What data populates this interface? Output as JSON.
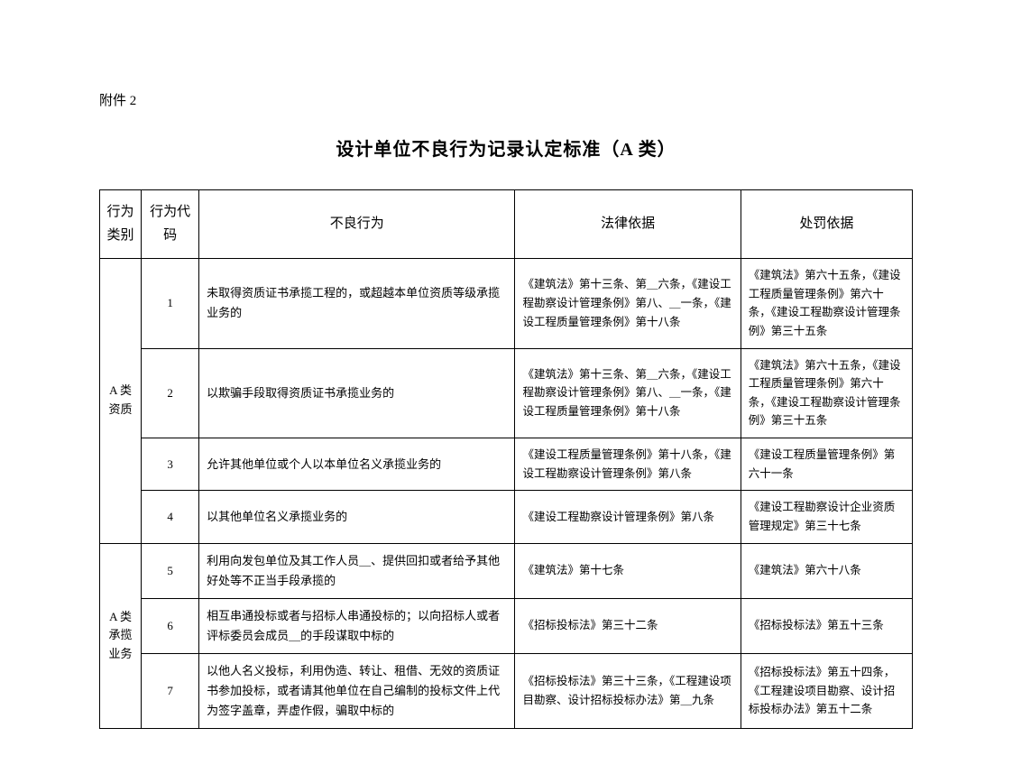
{
  "attachment_label": "附件 2",
  "title": "设计单位不良行为记录认定标准（A 类）",
  "headers": {
    "category": "行为类别",
    "code": "行为代码",
    "behavior": "不良行为",
    "legal_basis": "法律依据",
    "penalty_basis": "处罚依据"
  },
  "groups": [
    {
      "category": "A 类资质",
      "rows": [
        {
          "code": "1",
          "behavior": "未取得资质证书承揽工程的，或超越本单位资质等级承揽业务的",
          "legal_basis": "《建筑法》第十三条、第＿六条，《建设工程勘察设计管理条例》第八、＿一条，《建设工程质量管理条例》第十八条",
          "penalty_basis": "《建筑法》第六十五条，《建设工程质量管理条例》第六十条，《建设工程勘察设计管理条例》第三十五条"
        },
        {
          "code": "2",
          "behavior": "以欺骗手段取得资质证书承揽业务的",
          "legal_basis": "《建筑法》第十三条、第＿六条，《建设工程勘察设计管理条例》第八、＿一条，《建设工程质量管理条例》第十八条",
          "penalty_basis": "《建筑法》第六十五条，《建设工程质量管理条例》第六十条，《建设工程勘察设计管理条例》第三十五条"
        },
        {
          "code": "3",
          "behavior": "允许其他单位或个人以本单位名义承揽业务的",
          "legal_basis": "《建设工程质量管理条例》第十八条，《建设工程勘察设计管理条例》第八条",
          "penalty_basis": "《建设工程质量管理条例》第六十一条"
        },
        {
          "code": "4",
          "behavior": "以其他单位名义承揽业务的",
          "legal_basis": "《建设工程勘察设计管理条例》第八条",
          "penalty_basis": "《建设工程勘察设计企业资质管理规定》第三十七条"
        }
      ]
    },
    {
      "category": "A 类承揽业务",
      "rows": [
        {
          "code": "5",
          "behavior": "利用向发包单位及其工作人员＿、提供回扣或者给予其他好处等不正当手段承揽的",
          "legal_basis": "《建筑法》第十七条",
          "penalty_basis": "《建筑法》第六十八条"
        },
        {
          "code": "6",
          "behavior": "相互串通投标或者与招标人串通投标的；以向招标人或者评标委员会成员＿的手段谋取中标的",
          "legal_basis": "《招标投标法》第三十二条",
          "penalty_basis": "《招标投标法》第五十三条"
        },
        {
          "code": "7",
          "behavior": "以他人名义投标，利用伪造、转让、租借、无效的资质证书参加投标，或者请其他单位在自己编制的投标文件上代为签字盖章，弄虚作假，骗取中标的",
          "legal_basis": "《招标投标法》第三十三条，《工程建设项目勘察、设计招标投标办法》第＿九条",
          "penalty_basis": "《招标投标法》第五十四条，《工程建设项目勘察、设计招标投标办法》第五十二条"
        }
      ]
    }
  ]
}
